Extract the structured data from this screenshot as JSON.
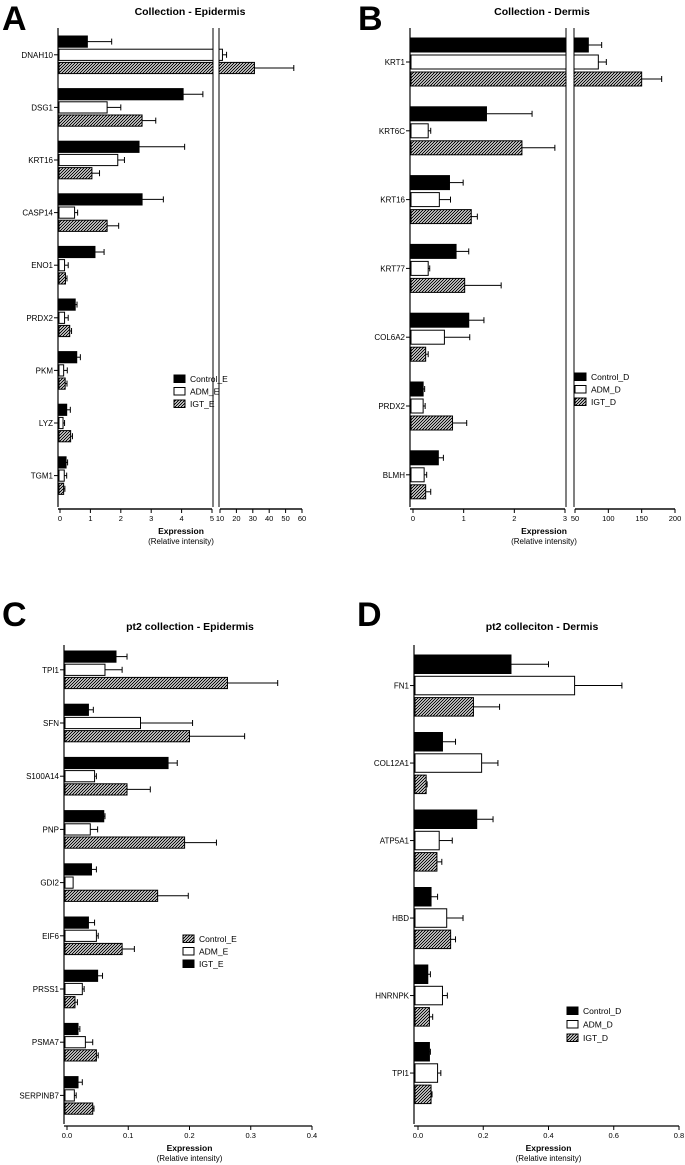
{
  "chart_data": [
    {
      "letter": "A",
      "type": "bar",
      "orientation": "horizontal",
      "title": "Collection - Epidermis",
      "xlabel": "Expression",
      "xsublabel": "(Relative intensity)",
      "axis_break": {
        "from": 5,
        "to": 10
      },
      "xticks": [
        "0",
        "1",
        "2",
        "3",
        "4",
        "5",
        "10",
        "20",
        "30",
        "40",
        "50",
        "60"
      ],
      "categories": [
        "DNAH10",
        "DSG1",
        "KRT16",
        "CASP14",
        "ENO1",
        "PRDX2",
        "PKM",
        "LYZ",
        "TGM1"
      ],
      "series": [
        {
          "name": "Control_E",
          "fill": "black",
          "values": [
            0.9,
            4.05,
            2.6,
            2.7,
            1.15,
            0.5,
            0.55,
            0.22,
            0.2
          ],
          "errors": [
            0.8,
            0.65,
            1.5,
            0.7,
            0.3,
            0.06,
            0.12,
            0.12,
            0.05
          ]
        },
        {
          "name": "ADM_E",
          "fill": "white",
          "values": [
            11.5,
            1.55,
            1.9,
            0.48,
            0.15,
            0.15,
            0.12,
            0.1,
            0.14
          ],
          "errors": [
            2.5,
            0.45,
            0.22,
            0.1,
            0.12,
            0.12,
            0.12,
            0.05,
            0.08
          ]
        },
        {
          "name": "IGT_E",
          "fill": "hatched",
          "values": [
            31,
            2.7,
            1.05,
            1.55,
            0.18,
            0.32,
            0.17,
            0.35,
            0.12
          ],
          "errors": [
            24,
            0.45,
            0.25,
            0.38,
            0.05,
            0.06,
            0.06,
            0.06,
            0.04
          ]
        }
      ],
      "legend": [
        "Control_E",
        "ADM_E",
        "IGT_E"
      ],
      "legend_position": "right"
    },
    {
      "letter": "B",
      "type": "bar",
      "orientation": "horizontal",
      "title": "Collection - Dermis",
      "xlabel": "Expression",
      "xsublabel": "(Relative intensity)",
      "axis_break": {
        "from": 3,
        "to": 50
      },
      "xticks": [
        "0",
        "1",
        "2",
        "3",
        "50",
        "100",
        "150",
        "200"
      ],
      "categories": [
        "KRT1",
        "KRT6C",
        "KRT16",
        "KRT77",
        "COL6A2",
        "PRDX2",
        "BLMH"
      ],
      "series": [
        {
          "name": "Control_D",
          "fill": "black",
          "values": [
            70,
            1.45,
            0.72,
            0.85,
            1.1,
            0.2,
            0.5
          ],
          "errors": [
            20,
            0.9,
            0.27,
            0.25,
            0.3,
            0.03,
            0.1
          ]
        },
        {
          "name": "ADM_D",
          "fill": "white",
          "values": [
            85,
            0.3,
            0.52,
            0.3,
            0.62,
            0.2,
            0.22
          ],
          "errors": [
            12,
            0.05,
            0.22,
            0.03,
            0.5,
            0.04,
            0.05
          ]
        },
        {
          "name": "IGT_D",
          "fill": "hatched",
          "values": [
            150,
            2.15,
            1.15,
            1.02,
            0.25,
            0.78,
            0.25
          ],
          "errors": [
            30,
            0.65,
            0.12,
            0.72,
            0.05,
            0.28,
            0.1
          ]
        }
      ],
      "legend": [
        "Control_D",
        "ADM_D",
        "IGT_D"
      ],
      "legend_position": "right"
    },
    {
      "letter": "C",
      "type": "bar",
      "orientation": "horizontal",
      "title": "pt2 collection - Epidermis",
      "xlabel": "Expression",
      "xsublabel": "(Relative intensity)",
      "xlim": [
        0,
        0.4
      ],
      "xticks": [
        "0.0",
        "0.1",
        "0.2",
        "0.3",
        "0.4"
      ],
      "categories": [
        "TPI1",
        "SFN",
        "S100A14",
        "PNP",
        "GDI2",
        "EIF6",
        "PRSS1",
        "PSMA7",
        "SERPINB7"
      ],
      "series": [
        {
          "name": "IGT_E",
          "fill": "black",
          "values": [
            0.08,
            0.035,
            0.165,
            0.06,
            0.04,
            0.035,
            0.05,
            0.018,
            0.018
          ],
          "errors": [
            0.018,
            0.008,
            0.015,
            0.002,
            0.008,
            0.01,
            0.008,
            0.003,
            0.007
          ]
        },
        {
          "name": "ADM_E",
          "fill": "white",
          "values": [
            0.062,
            0.12,
            0.045,
            0.038,
            0.01,
            0.048,
            0.025,
            0.03,
            0.012
          ],
          "errors": [
            0.028,
            0.085,
            0.003,
            0.012,
            0.0,
            0.003,
            0.003,
            0.012,
            0.003
          ]
        },
        {
          "name": "Control_E",
          "fill": "hatched",
          "values": [
            0.262,
            0.2,
            0.098,
            0.192,
            0.148,
            0.09,
            0.013,
            0.048,
            0.042
          ],
          "errors": [
            0.082,
            0.09,
            0.038,
            0.052,
            0.05,
            0.02,
            0.004,
            0.003,
            0.002
          ]
        }
      ],
      "legend": [
        "Control_E",
        "ADM_E",
        "IGT_E"
      ],
      "legend_position": "right"
    },
    {
      "letter": "D",
      "type": "bar",
      "orientation": "horizontal",
      "title": "pt2 colleciton - Dermis",
      "xlabel": "Expression",
      "xsublabel": "(Relative intensity)",
      "xlim": [
        0,
        0.8
      ],
      "xticks": [
        "0.0",
        "0.2",
        "0.4",
        "0.6",
        "0.8"
      ],
      "categories": [
        "FN1",
        "COL12A1",
        "ATP5A1",
        "HBD",
        "HNRNPK",
        "TPI1"
      ],
      "series": [
        {
          "name": "Control_D",
          "fill": "black",
          "values": [
            0.285,
            0.075,
            0.18,
            0.04,
            0.03,
            0.035
          ],
          "errors": [
            0.115,
            0.04,
            0.05,
            0.02,
            0.008,
            0.003
          ]
        },
        {
          "name": "ADM_D",
          "fill": "white",
          "values": [
            0.48,
            0.195,
            0.065,
            0.088,
            0.075,
            0.06
          ],
          "errors": [
            0.145,
            0.05,
            0.04,
            0.05,
            0.015,
            0.01
          ]
        },
        {
          "name": "IGT_D",
          "fill": "hatched",
          "values": [
            0.17,
            0.025,
            0.058,
            0.1,
            0.035,
            0.04
          ],
          "errors": [
            0.08,
            0.003,
            0.015,
            0.015,
            0.01,
            0.003
          ]
        }
      ],
      "legend": [
        "Control_D",
        "ADM_D",
        "IGT_D"
      ],
      "legend_position": "right"
    }
  ]
}
